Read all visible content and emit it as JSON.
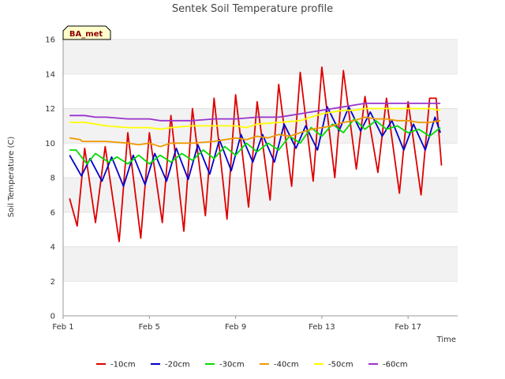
{
  "chart_data": {
    "type": "line",
    "title": "Sentek Soil Temperature profile",
    "xlabel": "Time",
    "ylabel": "Soil Temperature (C)",
    "badge": "BA_met",
    "xlim": [
      0,
      18.3
    ],
    "ylim": [
      0,
      16
    ],
    "x_ticks": [
      {
        "value": 0,
        "label": "Feb 1"
      },
      {
        "value": 4,
        "label": "Feb 5"
      },
      {
        "value": 8,
        "label": "Feb 9"
      },
      {
        "value": 12,
        "label": "Feb 13"
      },
      {
        "value": 16,
        "label": "Feb 17"
      }
    ],
    "y_ticks": [
      0,
      2,
      4,
      6,
      8,
      10,
      12,
      14,
      16
    ],
    "grid": true,
    "legend_position": "bottom",
    "series": [
      {
        "name": "-10cm",
        "color": "#dd0000",
        "points": [
          [
            0.3,
            6.8
          ],
          [
            0.65,
            5.2
          ],
          [
            1.0,
            9.7
          ],
          [
            1.5,
            5.4
          ],
          [
            1.95,
            9.8
          ],
          [
            2.6,
            4.3
          ],
          [
            3.0,
            10.6
          ],
          [
            3.6,
            4.5
          ],
          [
            4.0,
            10.6
          ],
          [
            4.6,
            5.4
          ],
          [
            5.0,
            11.6
          ],
          [
            5.6,
            4.9
          ],
          [
            6.0,
            12.0
          ],
          [
            6.6,
            5.8
          ],
          [
            7.0,
            12.6
          ],
          [
            7.6,
            5.6
          ],
          [
            8.0,
            12.8
          ],
          [
            8.6,
            6.3
          ],
          [
            9.0,
            12.4
          ],
          [
            9.6,
            6.7
          ],
          [
            10.0,
            13.4
          ],
          [
            10.6,
            7.5
          ],
          [
            11.0,
            14.1
          ],
          [
            11.6,
            7.8
          ],
          [
            12.0,
            14.4
          ],
          [
            12.6,
            8.0
          ],
          [
            13.0,
            14.2
          ],
          [
            13.6,
            8.5
          ],
          [
            14.0,
            12.7
          ],
          [
            14.6,
            8.3
          ],
          [
            15.0,
            12.6
          ],
          [
            15.6,
            7.1
          ],
          [
            16.0,
            12.4
          ],
          [
            16.6,
            7.0
          ],
          [
            17.0,
            12.6
          ],
          [
            17.3,
            12.6
          ],
          [
            17.55,
            8.7
          ]
        ]
      },
      {
        "name": "-20cm",
        "color": "#0000cc",
        "points": [
          [
            0.3,
            9.3
          ],
          [
            0.85,
            8.1
          ],
          [
            1.25,
            9.1
          ],
          [
            1.8,
            7.8
          ],
          [
            2.25,
            9.2
          ],
          [
            2.8,
            7.5
          ],
          [
            3.25,
            9.3
          ],
          [
            3.8,
            7.6
          ],
          [
            4.25,
            9.4
          ],
          [
            4.8,
            7.8
          ],
          [
            5.25,
            9.7
          ],
          [
            5.8,
            7.9
          ],
          [
            6.25,
            9.9
          ],
          [
            6.8,
            8.2
          ],
          [
            7.25,
            10.2
          ],
          [
            7.8,
            8.4
          ],
          [
            8.25,
            10.5
          ],
          [
            8.8,
            8.9
          ],
          [
            9.25,
            10.5
          ],
          [
            9.8,
            8.9
          ],
          [
            10.25,
            11.1
          ],
          [
            10.8,
            9.7
          ],
          [
            11.25,
            11.0
          ],
          [
            11.8,
            9.6
          ],
          [
            12.25,
            12.1
          ],
          [
            12.8,
            10.7
          ],
          [
            13.25,
            12.1
          ],
          [
            13.8,
            10.7
          ],
          [
            14.25,
            11.8
          ],
          [
            14.8,
            10.4
          ],
          [
            15.25,
            11.3
          ],
          [
            15.8,
            9.6
          ],
          [
            16.25,
            11.1
          ],
          [
            16.8,
            9.6
          ],
          [
            17.25,
            11.5
          ],
          [
            17.5,
            10.6
          ]
        ]
      },
      {
        "name": "-30cm",
        "color": "#00dd00",
        "points": [
          [
            0.3,
            9.6
          ],
          [
            0.6,
            9.6
          ],
          [
            1.1,
            8.8
          ],
          [
            1.5,
            9.4
          ],
          [
            2.1,
            8.9
          ],
          [
            2.5,
            9.2
          ],
          [
            3.0,
            8.8
          ],
          [
            3.5,
            9.3
          ],
          [
            4.0,
            8.8
          ],
          [
            4.5,
            9.3
          ],
          [
            5.0,
            8.9
          ],
          [
            5.5,
            9.4
          ],
          [
            6.0,
            9.0
          ],
          [
            6.5,
            9.6
          ],
          [
            7.0,
            9.1
          ],
          [
            7.5,
            9.8
          ],
          [
            8.0,
            9.3
          ],
          [
            8.5,
            10.0
          ],
          [
            9.0,
            9.5
          ],
          [
            9.5,
            10.0
          ],
          [
            10.0,
            9.6
          ],
          [
            10.5,
            10.4
          ],
          [
            11.0,
            10.0
          ],
          [
            11.5,
            10.9
          ],
          [
            12.0,
            10.4
          ],
          [
            12.5,
            11.1
          ],
          [
            13.0,
            10.6
          ],
          [
            13.5,
            11.4
          ],
          [
            14.0,
            10.8
          ],
          [
            14.5,
            11.3
          ],
          [
            15.0,
            10.8
          ],
          [
            15.5,
            11.0
          ],
          [
            16.0,
            10.6
          ],
          [
            16.5,
            10.8
          ],
          [
            17.0,
            10.4
          ],
          [
            17.5,
            10.9
          ]
        ]
      },
      {
        "name": "-40cm",
        "color": "#ee9900",
        "points": [
          [
            0.3,
            10.3
          ],
          [
            0.8,
            10.2
          ],
          [
            0.9,
            10.1
          ],
          [
            2.0,
            10.1
          ],
          [
            3.0,
            10.0
          ],
          [
            3.5,
            9.9
          ],
          [
            4.0,
            10.0
          ],
          [
            4.5,
            9.8
          ],
          [
            5.0,
            10.0
          ],
          [
            5.5,
            10.0
          ],
          [
            6.0,
            10.0
          ],
          [
            7.0,
            10.1
          ],
          [
            7.5,
            10.2
          ],
          [
            8.0,
            10.3
          ],
          [
            8.5,
            10.2
          ],
          [
            9.0,
            10.4
          ],
          [
            9.5,
            10.3
          ],
          [
            10.0,
            10.5
          ],
          [
            10.5,
            10.4
          ],
          [
            11.0,
            10.6
          ],
          [
            11.5,
            10.8
          ],
          [
            12.0,
            10.9
          ],
          [
            12.5,
            11.0
          ],
          [
            13.0,
            11.2
          ],
          [
            13.5,
            11.3
          ],
          [
            14.0,
            11.5
          ],
          [
            14.5,
            11.4
          ],
          [
            15.0,
            11.4
          ],
          [
            15.5,
            11.3
          ],
          [
            16.0,
            11.3
          ],
          [
            16.5,
            11.2
          ],
          [
            17.0,
            11.2
          ],
          [
            17.5,
            11.3
          ]
        ]
      },
      {
        "name": "-50cm",
        "color": "#ffff00",
        "points": [
          [
            0.3,
            11.2
          ],
          [
            1.0,
            11.2
          ],
          [
            2.0,
            11.0
          ],
          [
            3.0,
            10.9
          ],
          [
            4.0,
            10.9
          ],
          [
            4.5,
            10.8
          ],
          [
            5.0,
            10.9
          ],
          [
            6.0,
            11.0
          ],
          [
            7.0,
            11.0
          ],
          [
            8.0,
            11.0
          ],
          [
            8.5,
            10.9
          ],
          [
            9.0,
            11.1
          ],
          [
            10.0,
            11.2
          ],
          [
            11.0,
            11.3
          ],
          [
            11.5,
            11.5
          ],
          [
            12.0,
            11.7
          ],
          [
            12.5,
            11.8
          ],
          [
            13.0,
            11.9
          ],
          [
            13.5,
            11.9
          ],
          [
            14.0,
            12.0
          ],
          [
            15.0,
            12.0
          ],
          [
            16.0,
            12.0
          ],
          [
            17.0,
            12.0
          ],
          [
            17.5,
            11.9
          ]
        ]
      },
      {
        "name": "-60cm",
        "color": "#9933cc",
        "points": [
          [
            0.3,
            11.6
          ],
          [
            1.0,
            11.6
          ],
          [
            1.5,
            11.5
          ],
          [
            2.0,
            11.5
          ],
          [
            3.0,
            11.4
          ],
          [
            4.0,
            11.4
          ],
          [
            4.5,
            11.3
          ],
          [
            5.0,
            11.3
          ],
          [
            6.0,
            11.3
          ],
          [
            7.0,
            11.4
          ],
          [
            8.0,
            11.4
          ],
          [
            9.0,
            11.5
          ],
          [
            10.0,
            11.5
          ],
          [
            10.5,
            11.6
          ],
          [
            11.0,
            11.7
          ],
          [
            11.5,
            11.8
          ],
          [
            12.0,
            11.9
          ],
          [
            12.5,
            12.0
          ],
          [
            13.0,
            12.1
          ],
          [
            13.5,
            12.2
          ],
          [
            14.0,
            12.3
          ],
          [
            14.5,
            12.3
          ],
          [
            15.0,
            12.3
          ],
          [
            16.0,
            12.3
          ],
          [
            17.0,
            12.3
          ],
          [
            17.5,
            12.3
          ]
        ]
      }
    ]
  }
}
